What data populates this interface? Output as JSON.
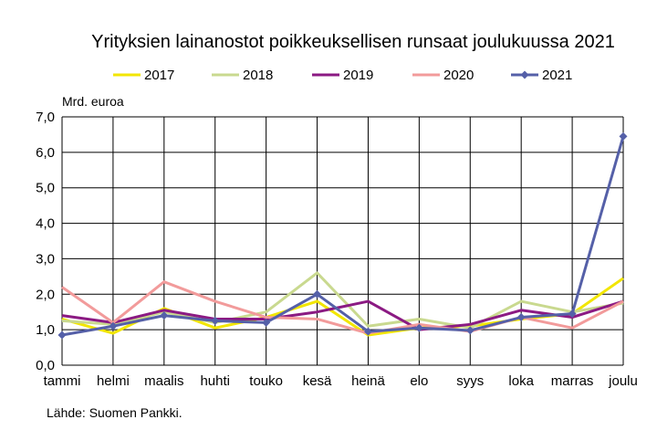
{
  "chart_data": {
    "type": "line",
    "title": "Yrityksien lainanostot poikkeuksellisen runsaat joulukuussa 2021",
    "ylabel": "Mrd. euroa",
    "xlabel": "",
    "source": "Lähde: Suomen Pankki.",
    "categories": [
      "tammi",
      "helmi",
      "maalis",
      "huhti",
      "touko",
      "kesä",
      "heinä",
      "elo",
      "syys",
      "loka",
      "marras",
      "joulu"
    ],
    "y_ticks": [
      "0,0",
      "1,0",
      "2,0",
      "3,0",
      "4,0",
      "5,0",
      "6,0",
      "7,0"
    ],
    "ylim": [
      0,
      7
    ],
    "grid": true,
    "legend_position": "top",
    "series": [
      {
        "name": "2017",
        "color": "#f2e600",
        "values": [
          1.3,
          0.9,
          1.6,
          1.05,
          1.35,
          1.8,
          0.85,
          1.05,
          1.1,
          1.3,
          1.45,
          2.45
        ]
      },
      {
        "name": "2018",
        "color": "#c9d98f",
        "values": [
          1.25,
          1.15,
          1.5,
          1.2,
          1.5,
          2.6,
          1.1,
          1.3,
          1.05,
          1.8,
          1.5,
          1.75
        ]
      },
      {
        "name": "2019",
        "color": "#8b1a83",
        "values": [
          1.4,
          1.2,
          1.55,
          1.3,
          1.3,
          1.5,
          1.8,
          1.0,
          1.15,
          1.55,
          1.35,
          1.8
        ]
      },
      {
        "name": "2020",
        "color": "#f29b9b",
        "values": [
          2.2,
          1.2,
          2.35,
          1.8,
          1.35,
          1.3,
          0.9,
          1.15,
          0.95,
          1.35,
          1.05,
          1.8
        ]
      },
      {
        "name": "2021",
        "color": "#5560a8",
        "values": [
          0.85,
          1.1,
          1.4,
          1.25,
          1.2,
          2.0,
          0.95,
          1.05,
          0.98,
          1.35,
          1.45,
          6.45
        ],
        "markers": true
      }
    ]
  }
}
